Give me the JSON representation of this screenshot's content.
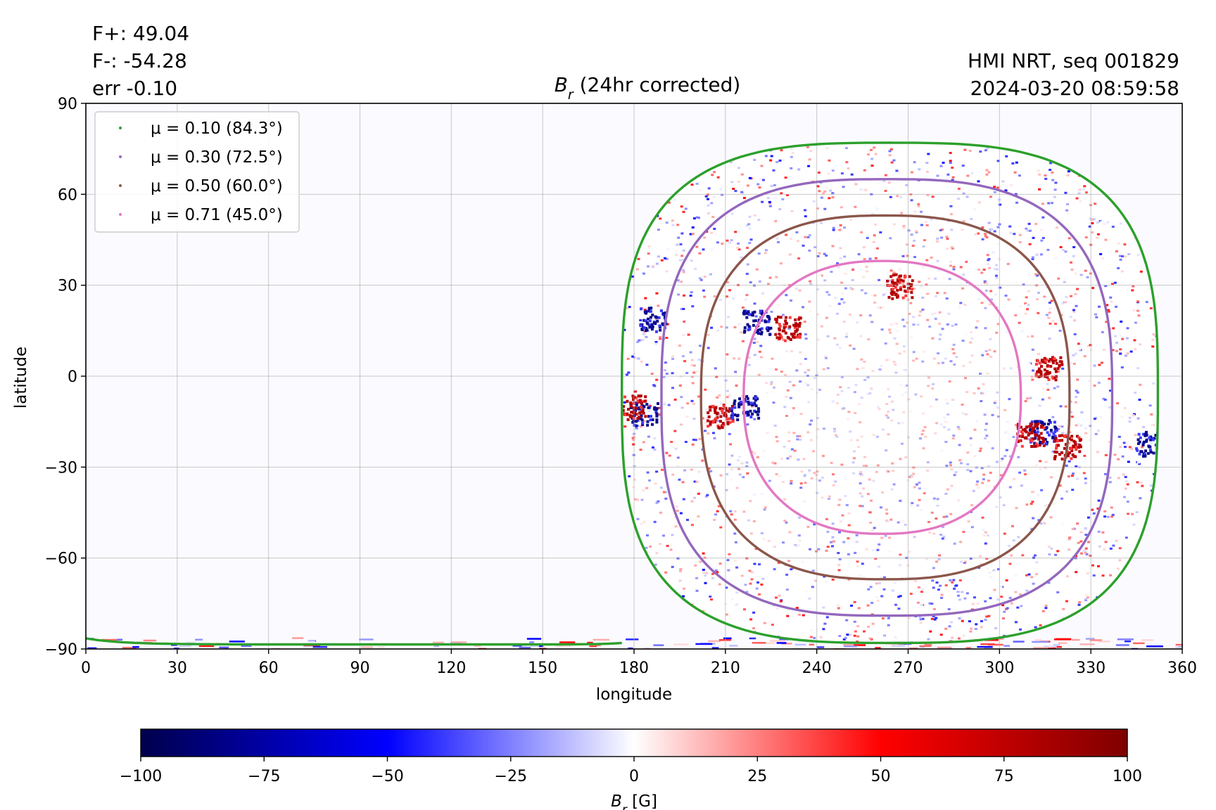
{
  "header": {
    "flux_pos": "F+: 49.04",
    "flux_neg": "F-: -54.28",
    "err": "err -0.10",
    "source": "HMI NRT, seq 001829",
    "timestamp": "2024-03-20 08:59:58"
  },
  "chart_data": {
    "type": "heatmap",
    "title": "B_r (24hr corrected)",
    "title_symbol": "B",
    "title_subscript": "r",
    "title_rest": " (24hr corrected)",
    "xlabel": "longitude",
    "ylabel": "latitude",
    "xlim": [
      0,
      360
    ],
    "ylim": [
      -90,
      90
    ],
    "x_ticks": [
      0,
      30,
      60,
      90,
      120,
      150,
      180,
      210,
      240,
      270,
      300,
      330,
      360
    ],
    "y_ticks": [
      -90,
      -60,
      -30,
      0,
      30,
      60,
      90
    ],
    "y_tick_labels": [
      "−90",
      "−60",
      "−30",
      "0",
      "30",
      "60",
      "90"
    ],
    "grid": true,
    "legend_position": "top-left",
    "disk_center": {
      "lon": 263,
      "lat": -7
    },
    "contours": [
      {
        "name": "μ = 0.10 (84.3°)",
        "mu": 0.1,
        "angle_deg": 84.3,
        "color": "#2ca02c",
        "lon_range": [
          176,
          352
        ],
        "lat_range": [
          -88,
          77
        ]
      },
      {
        "name": "μ = 0.30 (72.5°)",
        "mu": 0.3,
        "angle_deg": 72.5,
        "color": "#9467bd",
        "lon_range": [
          189,
          337
        ],
        "lat_range": [
          -79,
          65
        ]
      },
      {
        "name": "μ = 0.50 (60.0°)",
        "mu": 0.5,
        "angle_deg": 60.0,
        "color": "#8c564b",
        "lon_range": [
          202,
          323
        ],
        "lat_range": [
          -67,
          53
        ]
      },
      {
        "name": "μ = 0.71 (45.0°)",
        "mu": 0.71,
        "angle_deg": 45.0,
        "color": "#e377c2",
        "lon_range": [
          216,
          307
        ],
        "lat_range": [
          -52,
          38
        ]
      }
    ],
    "active_regions": [
      {
        "lon": 186,
        "lat": 19,
        "sign": "negative"
      },
      {
        "lon": 220,
        "lat": 18,
        "sign": "negative"
      },
      {
        "lon": 230,
        "lat": 16,
        "sign": "positive"
      },
      {
        "lon": 183,
        "lat": -12,
        "sign": "negative"
      },
      {
        "lon": 179,
        "lat": -10,
        "sign": "positive"
      },
      {
        "lon": 208,
        "lat": -13,
        "sign": "positive"
      },
      {
        "lon": 216,
        "lat": -10,
        "sign": "negative"
      },
      {
        "lon": 314,
        "lat": -18,
        "sign": "negative"
      },
      {
        "lon": 310,
        "lat": -19,
        "sign": "positive"
      },
      {
        "lon": 322,
        "lat": -23,
        "sign": "positive"
      },
      {
        "lon": 316,
        "lat": 3,
        "sign": "positive"
      },
      {
        "lon": 267,
        "lat": 30,
        "sign": "positive"
      },
      {
        "lon": 349,
        "lat": -22,
        "sign": "negative"
      }
    ],
    "colorbar": {
      "label_symbol": "B",
      "label_subscript": "r",
      "label_unit": " [G]",
      "min": -100,
      "max": 100,
      "ticks": [
        -100,
        -75,
        -50,
        -25,
        0,
        25,
        50,
        75,
        100
      ],
      "tick_labels": [
        "−100",
        "−75",
        "−50",
        "−25",
        "0",
        "25",
        "50",
        "75",
        "100"
      ],
      "colormap": "seismic",
      "colors": [
        "#00004c",
        "#0000ff",
        "#ffffff",
        "#ff0000",
        "#7f0000"
      ]
    }
  }
}
